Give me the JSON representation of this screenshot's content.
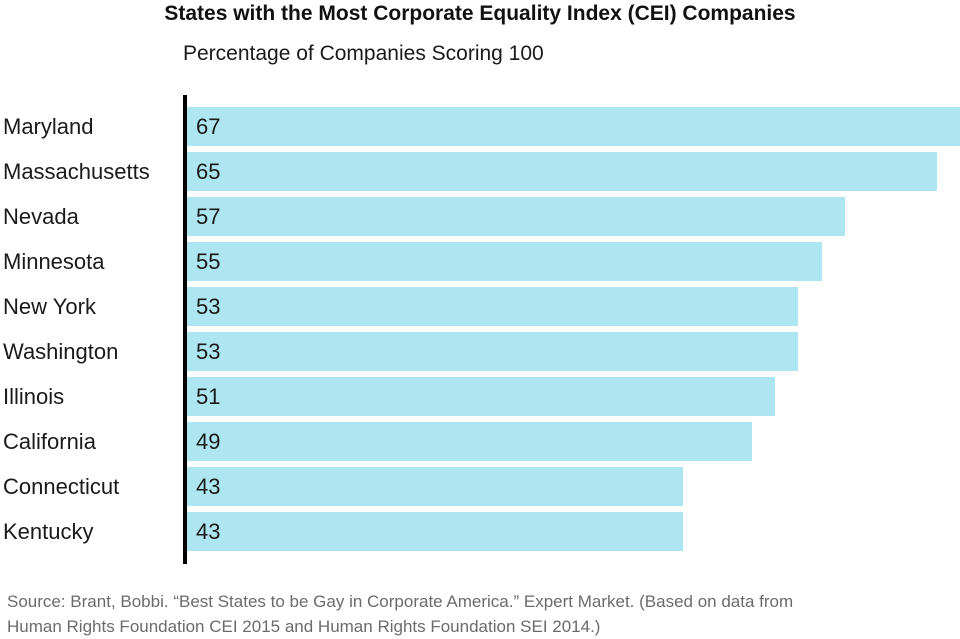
{
  "title": "States with the Most Corporate Equality Index (CEI) Companies",
  "subtitle": "Percentage of Companies Scoring 100",
  "source_lines": [
    "Source: Brant, Bobbi. “Best States to be Gay in Corporate America.” Expert Market. (Based on data from",
    "Human Rights Foundation CEI 2015 and Human Rights Foundation SEI 2014.)"
  ],
  "colors": {
    "bar_fill": "#ADE6F1",
    "axis_line": "#000000",
    "text": "#1a1a1a",
    "source_text": "#6b6b6b"
  },
  "chart_data": {
    "type": "bar",
    "orientation": "horizontal",
    "title": "States with the Most Corporate Equality Index (CEI) Companies",
    "subtitle": "Percentage of Companies Scoring 100",
    "categories": [
      "Maryland",
      "Massachusetts",
      "Nevada",
      "Minnesota",
      "New York",
      "Washington",
      "Illinois",
      "California",
      "Connecticut",
      "Kentucky"
    ],
    "values": [
      67,
      65,
      57,
      55,
      53,
      53,
      51,
      49,
      43,
      43
    ],
    "xlabel": "",
    "ylabel": "",
    "xlim": [
      0,
      67
    ],
    "grid": false,
    "legend": false,
    "value_labels": "inside-left"
  }
}
